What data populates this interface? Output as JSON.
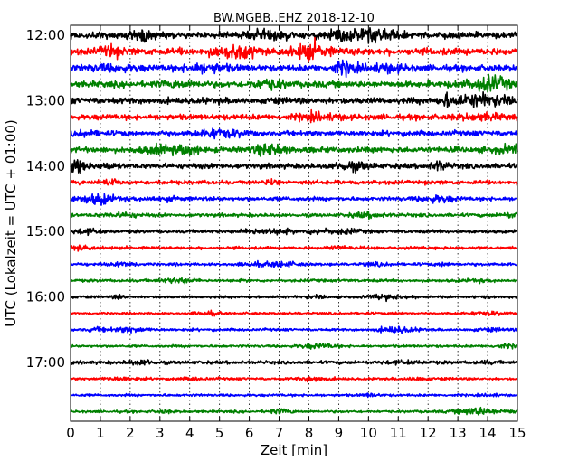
{
  "chart_data": {
    "type": "line",
    "title": "BW.MGBB..EHZ 2018-12-10",
    "xlabel": "Zeit  [min]",
    "ylabel": "UTC (Lokalzeit = UTC + 01:00)",
    "xlim": [
      0,
      15
    ],
    "x_ticks": [
      "0",
      "1",
      "2",
      "3",
      "4",
      "5",
      "6",
      "7",
      "8",
      "9",
      "10",
      "11",
      "12",
      "13",
      "14",
      "15"
    ],
    "y_ticks": [
      "12:00",
      "13:00",
      "14:00",
      "15:00",
      "16:00",
      "17:00"
    ],
    "grid": "vertical-dotted",
    "trace_colors": [
      "#000000",
      "#ff0000",
      "#0000ff",
      "#008000"
    ],
    "traces": [
      {
        "start": "12:00",
        "amplitude": 0.55
      },
      {
        "start": "12:15",
        "amplitude": 0.6
      },
      {
        "start": "12:30",
        "amplitude": 0.55
      },
      {
        "start": "12:45",
        "amplitude": 0.55
      },
      {
        "start": "13:00",
        "amplitude": 0.55
      },
      {
        "start": "13:15",
        "amplitude": 0.5
      },
      {
        "start": "13:30",
        "amplitude": 0.45
      },
      {
        "start": "13:45",
        "amplitude": 0.5
      },
      {
        "start": "14:00",
        "amplitude": 0.45
      },
      {
        "start": "14:15",
        "amplitude": 0.35
      },
      {
        "start": "14:30",
        "amplitude": 0.35
      },
      {
        "start": "14:45",
        "amplitude": 0.3
      },
      {
        "start": "15:00",
        "amplitude": 0.28
      },
      {
        "start": "15:15",
        "amplitude": 0.25
      },
      {
        "start": "15:30",
        "amplitude": 0.25
      },
      {
        "start": "15:45",
        "amplitude": 0.25
      },
      {
        "start": "16:00",
        "amplitude": 0.22
      },
      {
        "start": "16:15",
        "amplitude": 0.2
      },
      {
        "start": "16:30",
        "amplitude": 0.22
      },
      {
        "start": "16:45",
        "amplitude": 0.22
      },
      {
        "start": "17:00",
        "amplitude": 0.3
      },
      {
        "start": "17:15",
        "amplitude": 0.22
      },
      {
        "start": "17:30",
        "amplitude": 0.22
      },
      {
        "start": "17:45",
        "amplitude": 0.22
      }
    ]
  }
}
